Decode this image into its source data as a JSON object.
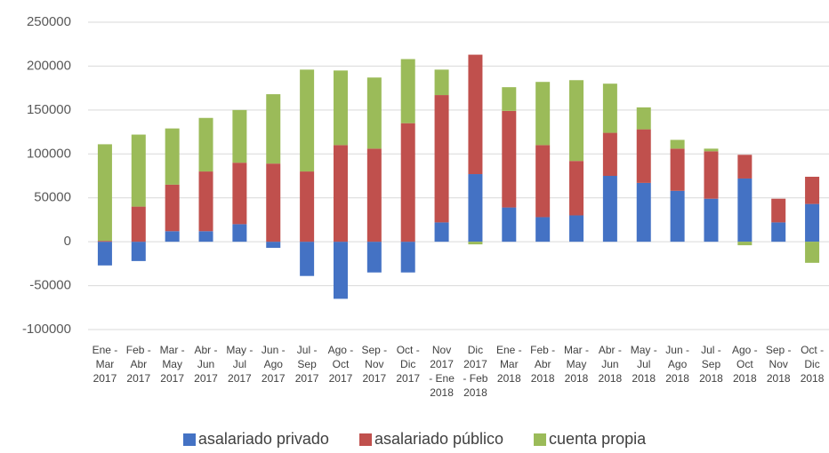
{
  "chart_data": {
    "type": "stacked_bar",
    "categories": [
      "Ene - Mar 2017",
      "Feb - Abr 2017",
      "Mar - May 2017",
      "Abr - Jun 2017",
      "May - Jul 2017",
      "Jun - Ago 2017",
      "Jul - Sep 2017",
      "Ago - Oct 2017",
      "Sep - Nov 2017",
      "Oct - Dic 2017",
      "Nov 2017 - Ene 2018",
      "Dic 2017 - Feb 2018",
      "Ene - Mar 2018",
      "Feb - Abr 2018",
      "Mar - May 2018",
      "Abr - Jun 2018",
      "May - Jul 2018",
      "Jun - Ago 2018",
      "Jul - Sep 2018",
      "Ago - Oct 2018",
      "Sep - Nov 2018",
      "Oct - Dic 2018"
    ],
    "series": [
      {
        "name": "asalariado privado",
        "color": "#4472c4",
        "values": [
          -27000,
          -22000,
          12000,
          12000,
          20000,
          -7000,
          -39000,
          -65000,
          -35000,
          -35000,
          22000,
          77000,
          39000,
          28000,
          30000,
          75000,
          67000,
          58000,
          49000,
          72000,
          22000,
          43000
        ]
      },
      {
        "name": "asalariado público",
        "color": "#c0504d",
        "values": [
          1000,
          40000,
          53000,
          68000,
          70000,
          89000,
          80000,
          110000,
          106000,
          135000,
          145000,
          136000,
          110000,
          82000,
          62000,
          49000,
          61000,
          48000,
          54000,
          27000,
          27000,
          31000
        ]
      },
      {
        "name": "cuenta propia",
        "color": "#9bbb59",
        "values": [
          110000,
          82000,
          64000,
          61000,
          60000,
          79000,
          116000,
          85000,
          81000,
          73000,
          29000,
          -3000,
          27000,
          72000,
          92000,
          56000,
          25000,
          10000,
          3000,
          -4000,
          0,
          -24000
        ]
      }
    ],
    "ylim": [
      -100000,
      250000
    ],
    "yticks": [
      -100000,
      -50000,
      0,
      50000,
      100000,
      150000,
      200000,
      250000
    ],
    "grid": true,
    "legend": "bottom"
  }
}
